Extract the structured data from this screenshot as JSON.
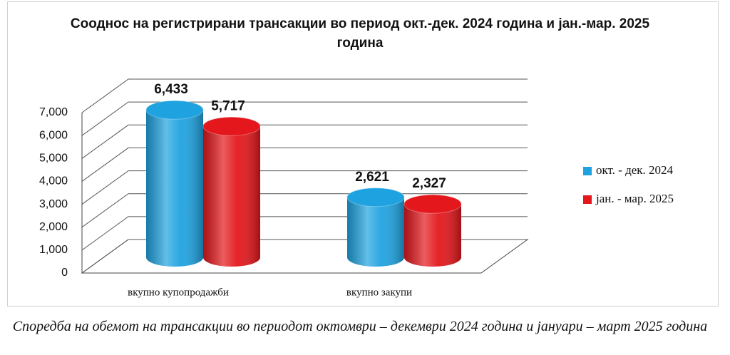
{
  "chart_data": {
    "type": "bar3d",
    "title": "Сооднос на регистрирани трансакции во период окт.-дек. 2024 година и јан.-мар. 2025 година",
    "categories": [
      "вкупно купопродажби",
      "вкупно закупи"
    ],
    "series": [
      {
        "name": "окт. - дек. 2024",
        "color": "#1fa3e0",
        "values": [
          6433,
          2621
        ],
        "value_labels": [
          "6,433",
          "2,621"
        ]
      },
      {
        "name": "јан. - мар. 2025",
        "color": "#e3171c",
        "values": [
          5717,
          2327
        ],
        "value_labels": [
          "5,717",
          "2,327"
        ]
      }
    ],
    "ylim": [
      0,
      7000
    ],
    "yticks": [
      0,
      {
        "value": 1000,
        "label": "1,000"
      },
      {
        "value": 2000,
        "label": "2,000"
      },
      {
        "value": 3000,
        "label": "3,000"
      },
      {
        "value": 4000,
        "label": "4,000"
      },
      {
        "value": 5000,
        "label": "5,000"
      },
      {
        "value": 6000,
        "label": "6,000"
      },
      {
        "value": 7000,
        "label": "7,000"
      }
    ],
    "grid": true,
    "legend": "right"
  },
  "caption": "Споредба на обемот на трансакции во периодот октомври – декември 2024 година и јануари – март 2025 година"
}
